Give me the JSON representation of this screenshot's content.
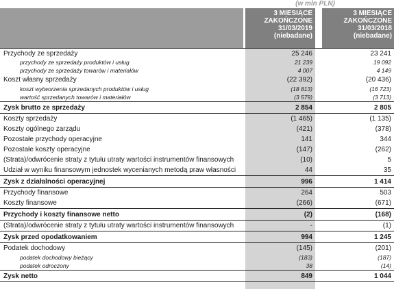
{
  "unit_label": "(w mln PLN)",
  "columns": [
    {
      "lines": [
        "3 MIESIĄCE",
        "ZAKOŃCZONE",
        "31/03/2019",
        "(niebadane)"
      ]
    },
    {
      "lines": [
        "3 MIESIĄCE",
        "ZAKOŃCZONE",
        "31/03/2018",
        "(niebadane)"
      ]
    }
  ],
  "rows": [
    {
      "label": "Przychody ze sprzedaży",
      "v2019": "25 246",
      "v2018": "23 241",
      "style": "top"
    },
    {
      "label": "przychody ze sprzedaży produktów i usług",
      "v2019": "21 239",
      "v2018": "19 092",
      "style": "s"
    },
    {
      "label": "przychody ze sprzedaży towarów i materiałów",
      "v2019": "4 007",
      "v2018": "4 149",
      "style": "s"
    },
    {
      "label": "Koszt własny sprzedaży",
      "v2019": "(22 392)",
      "v2018": "(20 436)",
      "style": "n"
    },
    {
      "label": "koszt wytworzenia sprzedanych produktów i usług",
      "v2019": "(18 813)",
      "v2018": "(16 723)",
      "style": "s"
    },
    {
      "label": "wartość sprzedanych towarów i materiałów",
      "v2019": "(3 579)",
      "v2018": "(3 713)",
      "style": "s"
    },
    {
      "label": "Zysk brutto ze sprzedaży",
      "v2019": "2 854",
      "v2018": "2 805",
      "style": "b"
    },
    {
      "label": "Koszty sprzedaży",
      "v2019": "(1 465)",
      "v2018": "(1 135)",
      "style": "n"
    },
    {
      "label": "Koszty ogólnego zarządu",
      "v2019": "(421)",
      "v2018": "(378)",
      "style": "n"
    },
    {
      "label": "Pozostałe przychody operacyjne",
      "v2019": "141",
      "v2018": "344",
      "style": "n"
    },
    {
      "label": "Pozostałe koszty operacyjne",
      "v2019": "(147)",
      "v2018": "(262)",
      "style": "n"
    },
    {
      "label": "(Strata)/odwrócenie straty z tytułu utraty wartości instrumentów finansowych",
      "v2019": "(10)",
      "v2018": "5",
      "style": "n"
    },
    {
      "label": "Udział w wyniku finansowym jednostek wycenianych metodą praw własności",
      "v2019": "44",
      "v2018": "35",
      "style": "n"
    },
    {
      "label": "Zysk z działalności operacyjnej",
      "v2019": "996",
      "v2018": "1 414",
      "style": "b"
    },
    {
      "label": "Przychody finansowe",
      "v2019": "264",
      "v2018": "503",
      "style": "n"
    },
    {
      "label": "Koszty finansowe",
      "v2019": "(266)",
      "v2018": "(671)",
      "style": "n"
    },
    {
      "label": "Przychody i koszty finansowe netto",
      "v2019": "(2)",
      "v2018": "(168)",
      "style": "b"
    },
    {
      "label": "(Strata)/odwrócenie straty z tytułu utraty wartości instrumentów finansowych",
      "v2019": "-",
      "v2018": "(1)",
      "style": "n"
    },
    {
      "label": "Zysk przed opodatkowaniem",
      "v2019": "994",
      "v2018": "1 245",
      "style": "b"
    },
    {
      "label": "Podatek dochodowy",
      "v2019": "(145)",
      "v2018": "(201)",
      "style": "n"
    },
    {
      "label": "podatek dochodowy bieżący",
      "v2019": "(183)",
      "v2018": "(187)",
      "style": "s"
    },
    {
      "label": "podatek odroczony",
      "v2019": "38",
      "v2018": "(14)",
      "style": "s"
    },
    {
      "label": "Zysk netto",
      "v2019": "849",
      "v2018": "1 044",
      "style": "b"
    }
  ]
}
